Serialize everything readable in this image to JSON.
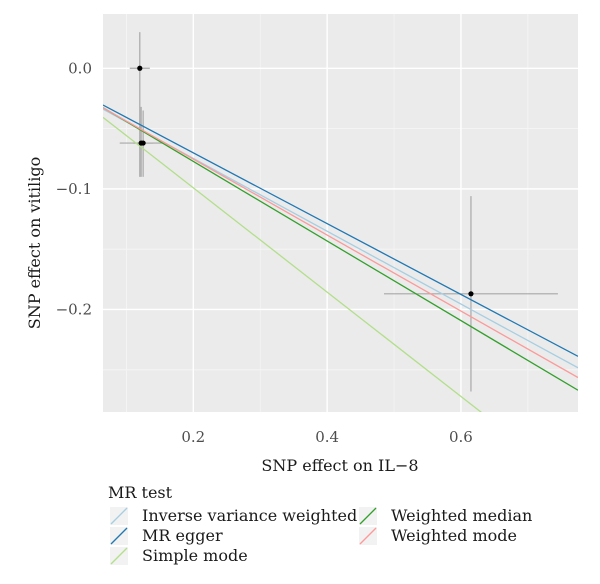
{
  "chart_data": {
    "type": "scatter",
    "title": "",
    "xlabel": "SNP effect on IL−8",
    "ylabel": "SNP effect on vitiligo",
    "xlim": [
      0.065,
      0.775
    ],
    "ylim": [
      -0.285,
      0.045
    ],
    "xticks": [
      0.2,
      0.4,
      0.6
    ],
    "xtick_labels": [
      "0.2",
      "0.4",
      "0.6"
    ],
    "yticks": [
      0.0,
      -0.1,
      -0.2
    ],
    "ytick_labels": [
      "0.0",
      "−0.1",
      "−0.2"
    ],
    "grid": true,
    "points": [
      {
        "x": 0.12,
        "y": 0.0,
        "x_lo": 0.105,
        "x_hi": 0.135,
        "y_lo": -0.09,
        "y_hi": 0.03
      },
      {
        "x": 0.122,
        "y": -0.062,
        "x_lo": 0.09,
        "x_hi": 0.155,
        "y_lo": -0.09,
        "y_hi": -0.032
      },
      {
        "x": 0.125,
        "y": -0.062,
        "x_lo": 0.11,
        "x_hi": 0.14,
        "y_lo": -0.09,
        "y_hi": -0.035
      },
      {
        "x": 0.615,
        "y": -0.187,
        "x_lo": 0.485,
        "x_hi": 0.745,
        "y_lo": -0.268,
        "y_hi": -0.106
      }
    ],
    "legend": {
      "title": "MR test",
      "position": "bottom"
    },
    "series": [
      {
        "name": "Inverse variance weighted",
        "color": "#a6cee3",
        "intercept": -0.0143,
        "slope": -0.302
      },
      {
        "name": "MR egger",
        "color": "#1f78b4",
        "intercept": -0.0114,
        "slope": -0.2935
      },
      {
        "name": "Simple mode",
        "color": "#b2df8a",
        "intercept": -0.0126,
        "slope": -0.4325
      },
      {
        "name": "Weighted median",
        "color": "#33a02c",
        "intercept": -0.0112,
        "slope": -0.33
      },
      {
        "name": "Weighted mode",
        "color": "#fb9a99",
        "intercept": -0.0123,
        "slope": -0.315
      }
    ]
  }
}
